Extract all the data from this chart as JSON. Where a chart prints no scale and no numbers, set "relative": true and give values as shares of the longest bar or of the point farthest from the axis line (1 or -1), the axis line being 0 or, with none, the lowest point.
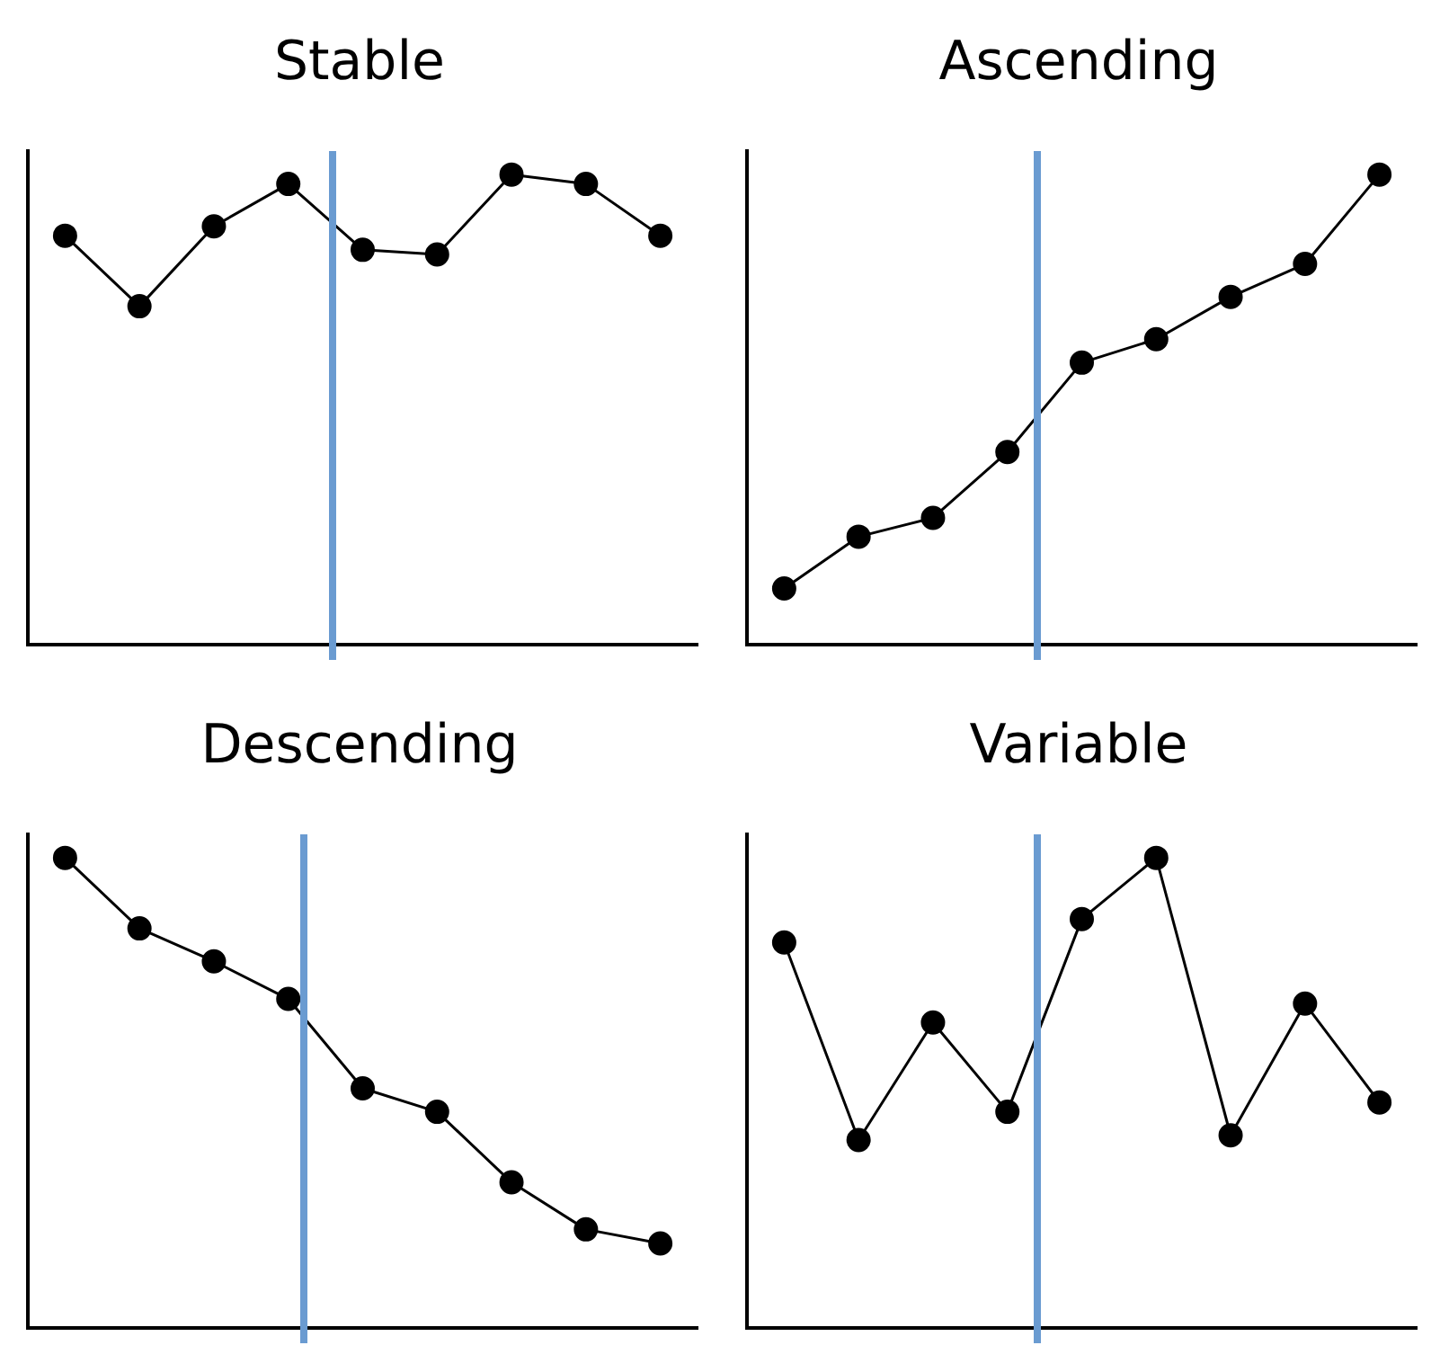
{
  "chart_data": [
    {
      "type": "line",
      "title": "Stable",
      "relative": true,
      "categories": [
        null,
        null,
        null,
        null,
        null,
        null,
        null,
        null,
        null
      ],
      "series": [
        {
          "color": "#000000",
          "values": [
            0.87,
            0.72,
            0.89,
            0.98,
            0.84,
            0.83,
            1,
            0.98,
            0.87
          ]
        }
      ],
      "marker": "circle",
      "line_style": "solid",
      "grid": false,
      "legend": false
    },
    {
      "type": "line",
      "title": "Ascending",
      "relative": true,
      "categories": [
        null,
        null,
        null,
        null,
        null,
        null,
        null,
        null,
        null
      ],
      "series": [
        {
          "color": "#000000",
          "values": [
            0.12,
            0.23,
            0.27,
            0.41,
            0.6,
            0.65,
            0.74,
            0.81,
            1
          ]
        }
      ],
      "marker": "circle",
      "line_style": "solid",
      "grid": false,
      "legend": false
    },
    {
      "type": "line",
      "title": "Descending",
      "relative": true,
      "categories": [
        null,
        null,
        null,
        null,
        null,
        null,
        null,
        null,
        null
      ],
      "series": [
        {
          "color": "#000000",
          "values": [
            1,
            0.85,
            0.78,
            0.7,
            0.51,
            0.46,
            0.31,
            0.21,
            0.18
          ]
        }
      ],
      "marker": "circle",
      "line_style": "solid",
      "grid": false,
      "legend": false
    },
    {
      "type": "line",
      "title": "Variable",
      "relative": true,
      "categories": [
        null,
        null,
        null,
        null,
        null,
        null,
        null,
        null,
        null
      ],
      "series": [
        {
          "color": "#000000",
          "values": [
            0.82,
            0.4,
            0.65,
            0.46,
            0.87,
            1,
            0.41,
            0.69,
            0.48
          ]
        }
      ],
      "marker": "circle",
      "line_style": "solid",
      "grid": false,
      "legend": false
    }
  ]
}
